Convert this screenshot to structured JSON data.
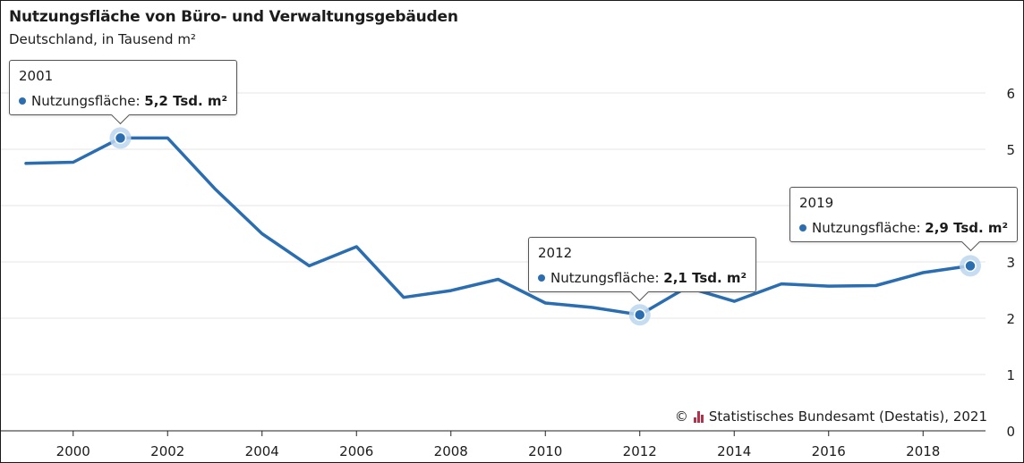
{
  "header": {
    "title": "Nutzungsfläche von Büro- und Verwaltungsgebäuden",
    "subtitle": "Deutschland, in Tausend m²"
  },
  "source": {
    "copyright": "©",
    "text": "Statistisches Bundesamt (Destatis), 2021"
  },
  "colors": {
    "line": "#2a6db0",
    "grid": "#e6e6e6",
    "logo": "#b0334a"
  },
  "tooltips": [
    {
      "year": "2001",
      "label": "Nutzungsfläche:",
      "value": "5,2 Tsd. m²"
    },
    {
      "year": "2012",
      "label": "Nutzungsfläche:",
      "value": "2,1 Tsd. m²"
    },
    {
      "year": "2019",
      "label": "Nutzungsfläche:",
      "value": "2,9 Tsd. m²"
    }
  ],
  "chart_data": {
    "type": "line",
    "title": "Nutzungsfläche von Büro- und Verwaltungsgebäuden",
    "subtitle": "Deutschland, in Tausend m²",
    "x": [
      1999,
      2000,
      2001,
      2002,
      2003,
      2004,
      2005,
      2006,
      2007,
      2008,
      2009,
      2010,
      2011,
      2012,
      2013,
      2014,
      2015,
      2016,
      2017,
      2018,
      2019
    ],
    "series": [
      {
        "name": "Nutzungsfläche",
        "values": [
          4.75,
          4.77,
          5.2,
          5.2,
          4.3,
          3.5,
          2.93,
          3.27,
          2.37,
          2.49,
          2.69,
          2.27,
          2.19,
          2.06,
          2.55,
          2.3,
          2.61,
          2.57,
          2.58,
          2.81,
          2.93
        ]
      }
    ],
    "xticks": [
      2000,
      2002,
      2004,
      2006,
      2008,
      2010,
      2012,
      2014,
      2016,
      2018
    ],
    "yticks": [
      0,
      1,
      2,
      3,
      4,
      5,
      6
    ],
    "xlim": [
      1999,
      2019
    ],
    "ylim": [
      0,
      6
    ],
    "grid": true,
    "y_axis_position": "right",
    "highlighted_points": [
      2001,
      2012,
      2019
    ]
  }
}
